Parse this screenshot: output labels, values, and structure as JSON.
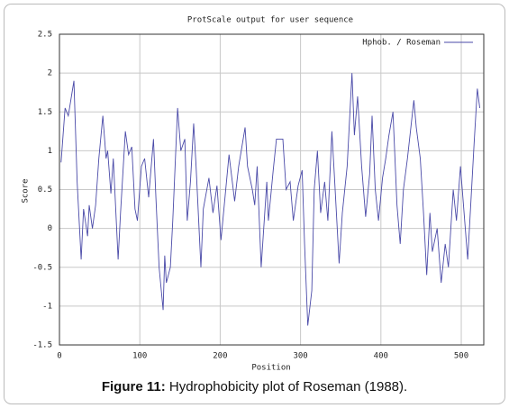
{
  "chart_data": {
    "type": "line",
    "title": "ProtScale output for user sequence",
    "x_label": "Position",
    "y_label": "Score",
    "x": [
      2,
      7,
      11,
      18,
      22,
      27,
      30,
      35,
      37,
      41,
      45,
      49,
      54,
      58,
      60,
      64,
      67,
      73,
      76,
      82,
      86,
      90,
      94,
      97,
      102,
      106,
      111,
      117,
      120,
      124,
      129,
      131,
      133,
      138,
      141,
      147,
      151,
      156,
      159,
      163,
      167,
      170,
      176,
      179,
      186,
      191,
      196,
      201,
      211,
      218,
      223,
      231,
      234,
      240,
      243,
      246,
      251,
      258,
      260,
      266,
      270,
      278,
      282,
      287,
      291,
      297,
      302,
      305,
      309,
      314,
      317,
      321,
      325,
      330,
      334,
      339,
      342,
      348,
      352,
      358,
      364,
      367,
      371,
      376,
      381,
      386,
      389,
      393,
      397,
      402,
      406,
      410,
      415,
      420,
      424,
      428,
      433,
      441,
      444,
      449,
      453,
      457,
      461,
      464,
      470,
      475,
      480,
      484,
      490,
      494,
      499,
      508,
      516,
      520,
      523
    ],
    "series": [
      {
        "name": "Hphob. / Roseman",
        "color": "#4a4aa8",
        "values": [
          0.85,
          1.55,
          1.45,
          1.9,
          0.6,
          -0.4,
          0.25,
          -0.1,
          0.3,
          0,
          0.3,
          0.9,
          1.45,
          0.9,
          1.0,
          0.45,
          0.9,
          -0.4,
          0.2,
          1.25,
          0.95,
          1.05,
          0.25,
          0.1,
          0.8,
          0.9,
          0.4,
          1.15,
          0.4,
          -0.5,
          -1.05,
          -0.35,
          -0.7,
          -0.5,
          0.1,
          1.55,
          1.0,
          1.15,
          0.1,
          0.6,
          1.35,
          0.8,
          -0.5,
          0.25,
          0.65,
          0.2,
          0.55,
          -0.15,
          0.95,
          0.35,
          0.8,
          1.3,
          0.8,
          0.5,
          0.3,
          0.8,
          -0.5,
          0.6,
          0.1,
          0.75,
          1.15,
          1.15,
          0.5,
          0.6,
          0.1,
          0.55,
          0.75,
          -0.2,
          -1.25,
          -0.8,
          0.5,
          1.0,
          0.2,
          0.6,
          0.1,
          1.25,
          0.7,
          -0.45,
          0.2,
          0.8,
          2.0,
          1.2,
          1.7,
          0.8,
          0.15,
          0.7,
          1.45,
          0.5,
          0.1,
          0.65,
          0.9,
          1.2,
          1.5,
          0.3,
          -0.2,
          0.5,
          0.9,
          1.65,
          1.3,
          0.9,
          0.2,
          -0.6,
          0.2,
          -0.3,
          0,
          -0.7,
          -0.2,
          -0.5,
          0.5,
          0.1,
          0.8,
          -0.4,
          1.1,
          1.8,
          1.55
        ]
      }
    ],
    "xlim": [
      0,
      528
    ],
    "xticks": [
      0,
      100,
      200,
      300,
      400,
      500
    ],
    "ylim": [
      -1.5,
      2.5
    ],
    "yticks": [
      -1.5,
      -1,
      -0.5,
      0,
      0.5,
      1,
      1.5,
      2,
      2.5
    ],
    "grid": true,
    "legend": "top-right",
    "caption": {
      "label": "Figure 11:",
      "text": "Hydrophobicity plot of Roseman (1988)."
    }
  }
}
